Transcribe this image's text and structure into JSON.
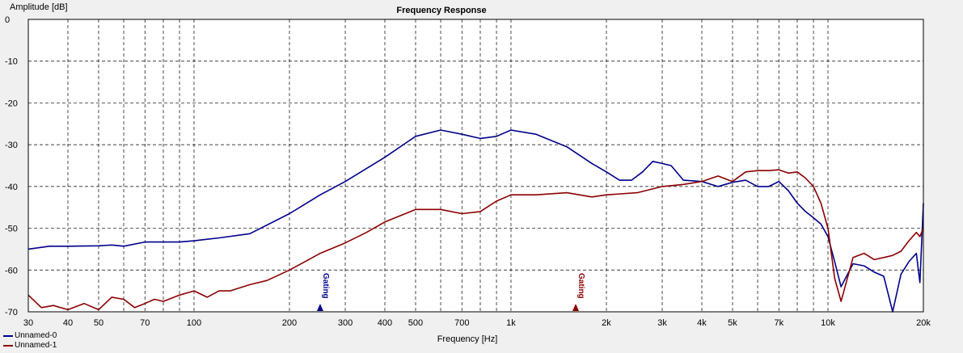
{
  "chart_data": {
    "type": "line",
    "title": "Frequency Response",
    "xlabel": "Frequency [Hz]",
    "ylabel": "Amplitude [dB]",
    "x_scale": "log",
    "xlim": [
      30,
      20000
    ],
    "ylim": [
      -70,
      0
    ],
    "grid": true,
    "legend_position": "bottom-left",
    "y_ticks": [
      0,
      -10,
      -20,
      -30,
      -40,
      -50,
      -60,
      -70
    ],
    "y_tick_labels": [
      "0",
      "-10",
      "-20",
      "-30",
      "-40",
      "-50",
      "-60",
      "-70"
    ],
    "x_ticks": [
      30,
      40,
      50,
      70,
      100,
      200,
      300,
      400,
      500,
      700,
      1000,
      2000,
      3000,
      4000,
      5000,
      7000,
      10000,
      20000
    ],
    "x_tick_labels": [
      "30",
      "40",
      "50",
      "70",
      "100",
      "200",
      "300",
      "400",
      "500",
      "700",
      "1k",
      "2k",
      "3k",
      "4k",
      "5k",
      "7k",
      "10k",
      "20k"
    ],
    "x_minor_grid": [
      60,
      80,
      90,
      600,
      800,
      900,
      6000,
      8000,
      9000
    ],
    "annotations": [
      {
        "text": "Gating",
        "x": 250,
        "color": "#00008b"
      },
      {
        "text": "Gating",
        "x": 1600,
        "color": "#8b0000"
      }
    ],
    "series": [
      {
        "name": "Unnamed-0",
        "color": "#00008b",
        "x": [
          30,
          35,
          40,
          50,
          55,
          60,
          70,
          80,
          90,
          100,
          120,
          150,
          200,
          250,
          300,
          400,
          500,
          600,
          700,
          800,
          900,
          1000,
          1200,
          1500,
          1800,
          2000,
          2200,
          2400,
          2600,
          2800,
          3000,
          3200,
          3500,
          4000,
          4500,
          5000,
          5500,
          6000,
          6500,
          7000,
          7500,
          8000,
          8500,
          9000,
          9500,
          10000,
          10500,
          11000,
          12000,
          13000,
          14000,
          15000,
          16000,
          17000,
          18000,
          19000,
          19500,
          20000
        ],
        "y": [
          -55,
          -54.3,
          -54.3,
          -54.2,
          -54,
          -54.3,
          -53.3,
          -53.3,
          -53.3,
          -53,
          -52.3,
          -51.3,
          -46.5,
          -42,
          -38.8,
          -33,
          -28,
          -26.5,
          -27.5,
          -28.5,
          -28,
          -26.5,
          -27.5,
          -30.5,
          -34.5,
          -36.5,
          -38.5,
          -38.5,
          -36.5,
          -34,
          -34.5,
          -35,
          -38.5,
          -38.8,
          -40,
          -39,
          -38.5,
          -40,
          -40,
          -38.8,
          -41,
          -44,
          -46,
          -47.5,
          -49,
          -52,
          -58,
          -64,
          -58.5,
          -59,
          -60.5,
          -61.5,
          -70,
          -61,
          -58,
          -56,
          -63,
          -44
        ]
      },
      {
        "name": "Unnamed-1",
        "color": "#8b0000",
        "x": [
          30,
          33,
          36,
          40,
          45,
          50,
          55,
          60,
          65,
          70,
          75,
          80,
          90,
          100,
          110,
          120,
          130,
          150,
          170,
          200,
          230,
          250,
          300,
          350,
          400,
          500,
          600,
          700,
          800,
          900,
          1000,
          1200,
          1500,
          1800,
          2000,
          2500,
          3000,
          3500,
          4000,
          4500,
          5000,
          5500,
          6000,
          6500,
          7000,
          7500,
          8000,
          8500,
          9000,
          9500,
          10000,
          10500,
          11000,
          12000,
          13000,
          14000,
          15000,
          16000,
          17000,
          18000,
          19000,
          19500,
          20000
        ],
        "y": [
          -66,
          -69,
          -68.5,
          -69.5,
          -68,
          -69.5,
          -66.5,
          -67,
          -69,
          -68,
          -67,
          -67.5,
          -66,
          -65,
          -66.5,
          -65,
          -65,
          -63.5,
          -62.5,
          -60,
          -57.5,
          -56,
          -53.5,
          -51,
          -48.5,
          -45.5,
          -45.5,
          -46.5,
          -46,
          -43.5,
          -42,
          -42,
          -41.5,
          -42.5,
          -42,
          -41.5,
          -40,
          -39.5,
          -38.8,
          -37.5,
          -38.8,
          -36.5,
          -36.2,
          -36.2,
          -36,
          -36.8,
          -36.5,
          -38,
          -40,
          -44,
          -50,
          -62,
          -67.5,
          -57,
          -56,
          -57.5,
          -57,
          -56.5,
          -55.5,
          -53,
          -51,
          -52,
          -50
        ]
      }
    ]
  }
}
